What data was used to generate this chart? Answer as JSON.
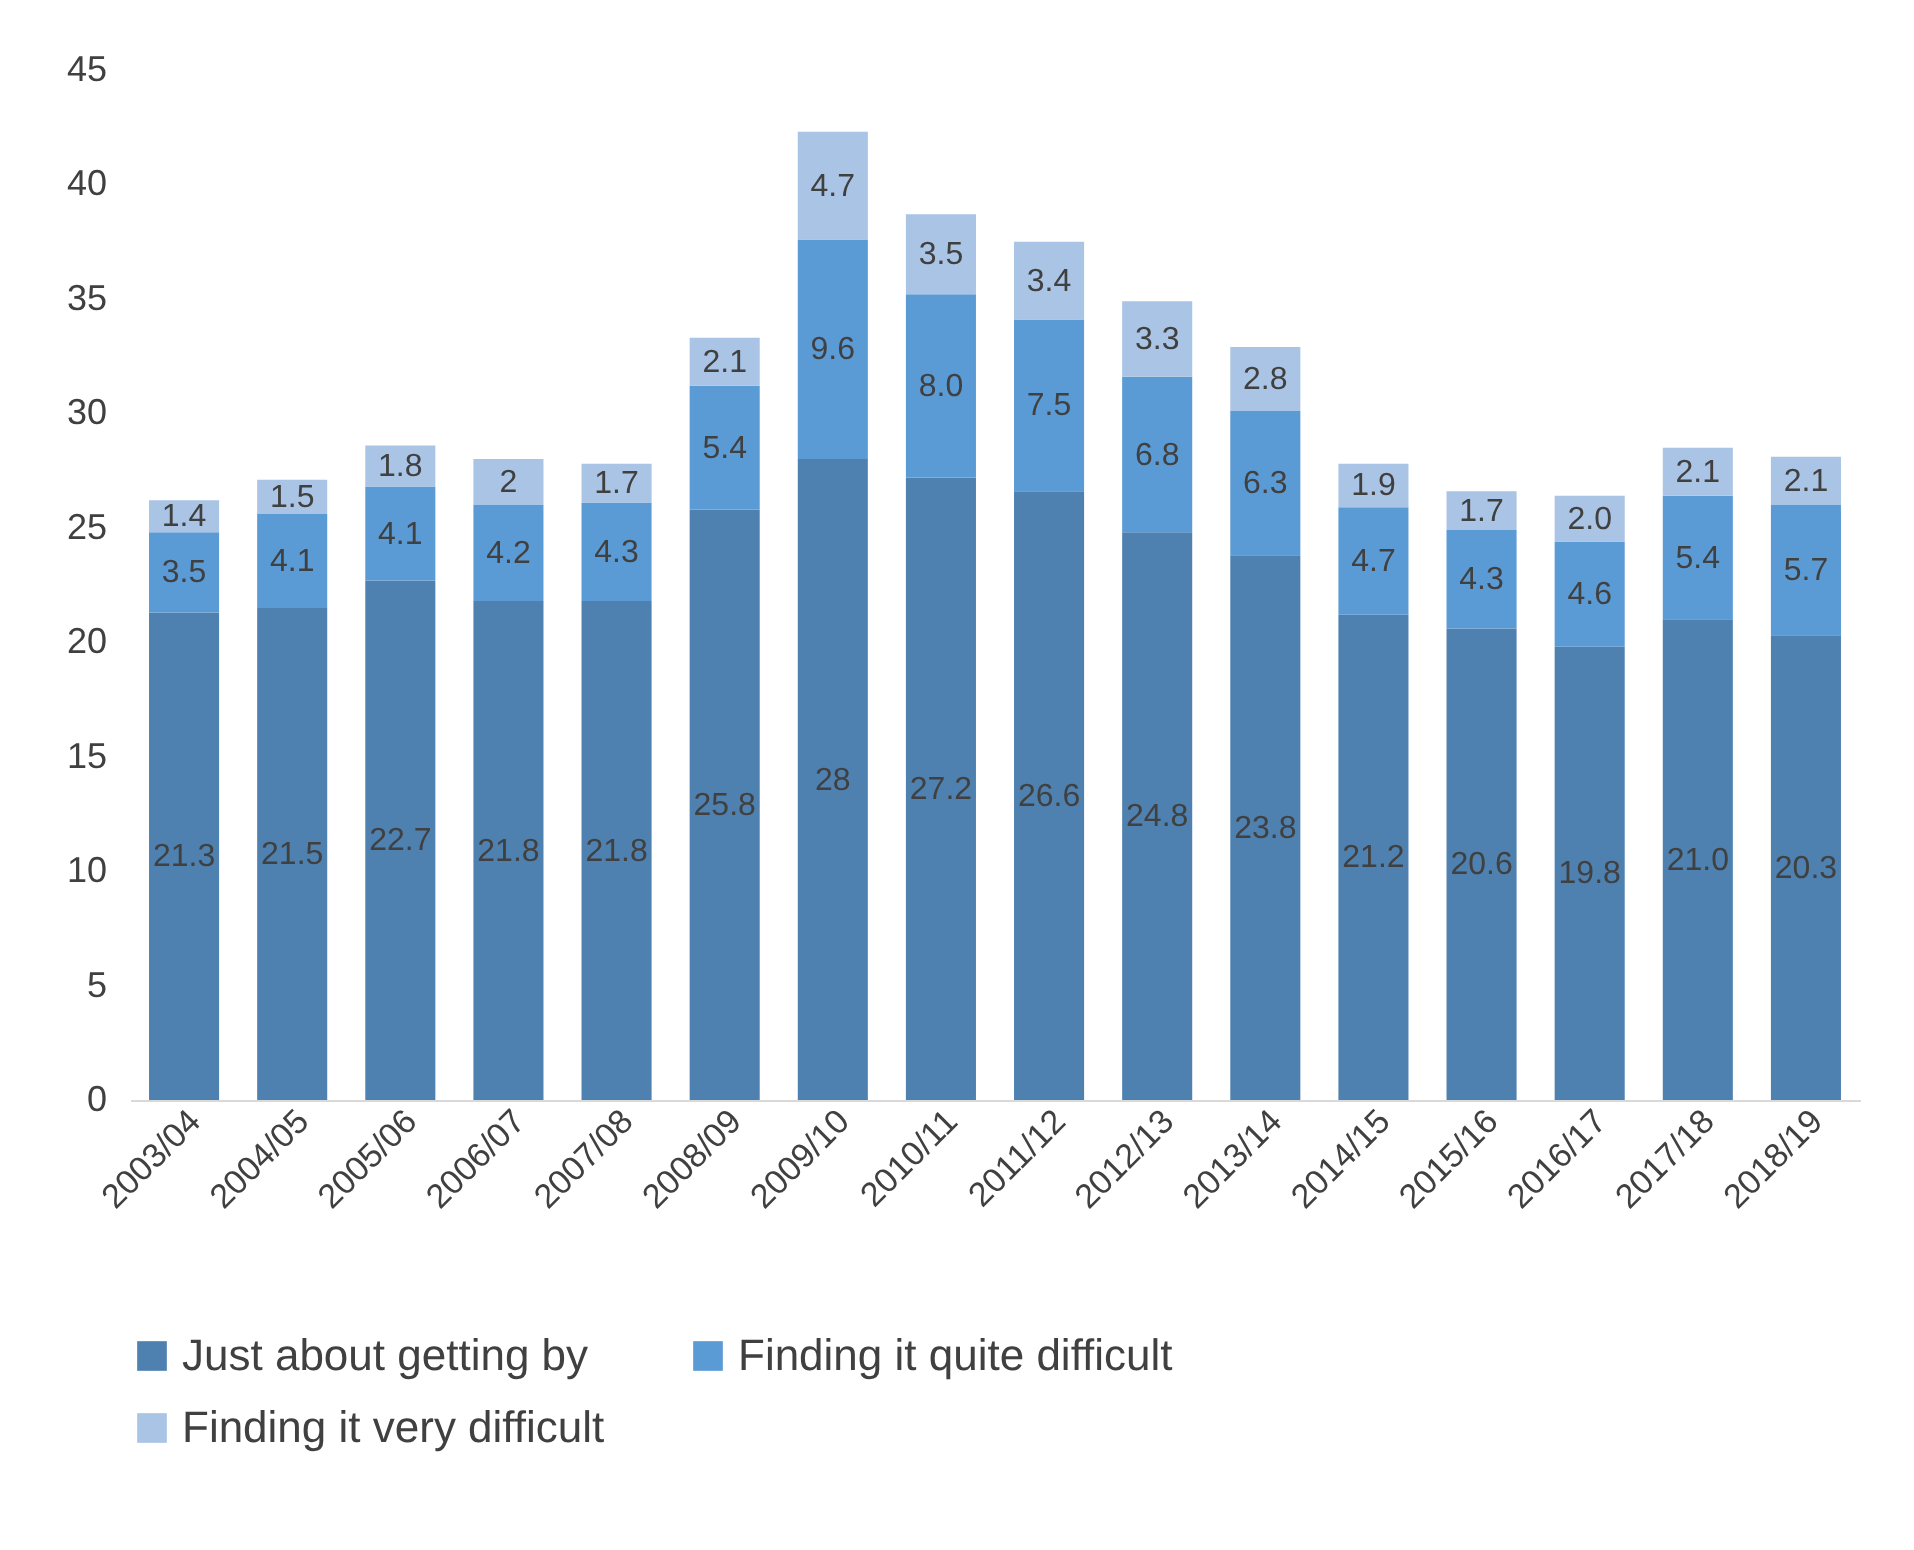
{
  "chart_data": {
    "type": "bar",
    "stacked": true,
    "categories": [
      "2003/04",
      "2004/05",
      "2005/06",
      "2006/07",
      "2007/08",
      "2008/09",
      "2009/10",
      "2010/11",
      "2011/12",
      "2012/13",
      "2013/14",
      "2014/15",
      "2015/16",
      "2016/17",
      "2017/18",
      "2018/19"
    ],
    "series": [
      {
        "name": "Just about getting by",
        "color": "#4e81b0",
        "values": [
          21.3,
          21.5,
          22.7,
          21.8,
          21.8,
          25.8,
          28,
          27.2,
          26.6,
          24.8,
          23.8,
          21.2,
          20.6,
          19.8,
          21.0,
          20.3
        ],
        "value_labels": [
          "21.3",
          "21.5",
          "22.7",
          "21.8",
          "21.8",
          "25.8",
          "28",
          "27.2",
          "26.6",
          "24.8",
          "23.8",
          "21.2",
          "20.6",
          "19.8",
          "21.0",
          "20.3"
        ]
      },
      {
        "name": "Finding it quite difficult",
        "color": "#5b9bd5",
        "values": [
          3.5,
          4.1,
          4.1,
          4.2,
          4.3,
          5.4,
          9.6,
          8.0,
          7.5,
          6.8,
          6.3,
          4.7,
          4.3,
          4.6,
          5.4,
          5.7
        ],
        "value_labels": [
          "3.5",
          "4.1",
          "4.1",
          "4.2",
          "4.3",
          "5.4",
          "9.6",
          "8.0",
          "7.5",
          "6.8",
          "6.3",
          "4.7",
          "4.3",
          "4.6",
          "5.4",
          "5.7"
        ]
      },
      {
        "name": "Finding it very difficult",
        "color": "#a9c4e4",
        "values": [
          1.4,
          1.5,
          1.8,
          2,
          1.7,
          2.1,
          4.7,
          3.5,
          3.4,
          3.3,
          2.8,
          1.9,
          1.7,
          2.0,
          2.1,
          2.1
        ],
        "value_labels": [
          "1.4",
          "1.5",
          "1.8",
          "2",
          "1.7",
          "2.1",
          "4.7",
          "3.5",
          "3.4",
          "3.3",
          "2.8",
          "1.9",
          "1.7",
          "2.0",
          "2.1",
          "2.1"
        ]
      }
    ],
    "ylim": [
      0,
      45
    ],
    "yticks": [
      0,
      5,
      10,
      15,
      20,
      25,
      30,
      35,
      40,
      45
    ],
    "grid": false,
    "legend": "bottom"
  }
}
